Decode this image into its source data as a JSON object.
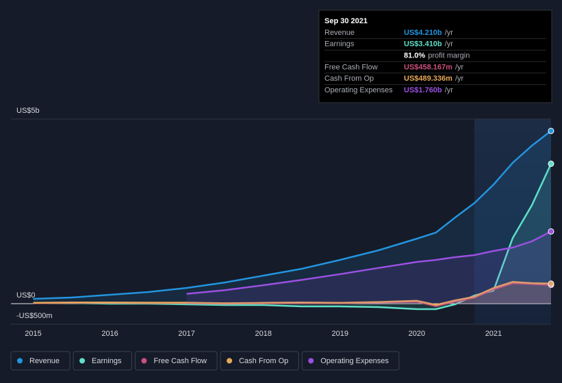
{
  "chart_data": {
    "type": "line",
    "x": [
      2015,
      2015.5,
      2016,
      2016.5,
      2017,
      2017.5,
      2018,
      2018.5,
      2019,
      2019.5,
      2020,
      2020.25,
      2020.5,
      2020.75,
      2021,
      2021.25,
      2021.5,
      2021.75
    ],
    "series": [
      {
        "name": "Revenue",
        "color": "#2394df",
        "values": [
          117,
          150,
          217,
          283,
          383,
          517,
          683,
          850,
          1067,
          1300,
          1583,
          1733,
          2100,
          2450,
          2900,
          3433,
          3850,
          4210
        ]
      },
      {
        "name": "Earnings",
        "color": "#5ee0c8",
        "values": [
          17,
          17,
          0,
          0,
          -17,
          -33,
          -33,
          -67,
          -67,
          -83,
          -133,
          -133,
          -17,
          200,
          317,
          1600,
          2400,
          3410
        ]
      },
      {
        "name": "Free Cash Flow",
        "color": "#c9507c",
        "values": [
          10,
          20,
          20,
          15,
          15,
          0,
          10,
          15,
          10,
          30,
          50,
          -60,
          50,
          150,
          350,
          500,
          480,
          458.167
        ]
      },
      {
        "name": "Cash From Op",
        "color": "#e7a85a",
        "values": [
          20,
          30,
          30,
          25,
          25,
          10,
          20,
          30,
          20,
          40,
          70,
          -30,
          80,
          170,
          380,
          530,
          500,
          489.336
        ]
      },
      {
        "name": "Operating Expenses",
        "color": "#9b50e2",
        "values": [
          null,
          null,
          null,
          null,
          240,
          330,
          450,
          580,
          720,
          870,
          1017,
          1067,
          1133,
          1183,
          1283,
          1367,
          1520,
          1760
        ]
      }
    ],
    "xlim": [
      2014.71,
      2021.75
    ],
    "xticks": [
      2015,
      2016,
      2017,
      2018,
      2019,
      2020,
      2021
    ],
    "ylim": [
      -500,
      4500
    ],
    "yticks": [
      {
        "value": 4500,
        "label": "US$5b"
      },
      {
        "value": 0,
        "label": "US$0"
      },
      {
        "value": -500,
        "label": "-US$500m"
      }
    ],
    "tooltip": {
      "date": "Sep 30 2021",
      "rows": [
        {
          "label": "Revenue",
          "value": "US$4.210b",
          "unit": "/yr"
        },
        {
          "label": "Earnings",
          "value": "US$3.410b",
          "unit": "/yr"
        },
        {
          "label": "",
          "value": "81.0%",
          "unit": "profit margin"
        },
        {
          "label": "Free Cash Flow",
          "value": "US$458.167m",
          "unit": "/yr"
        },
        {
          "label": "Cash From Op",
          "value": "US$489.336m",
          "unit": "/yr"
        },
        {
          "label": "Operating Expenses",
          "value": "US$1.760b",
          "unit": "/yr"
        }
      ]
    }
  }
}
